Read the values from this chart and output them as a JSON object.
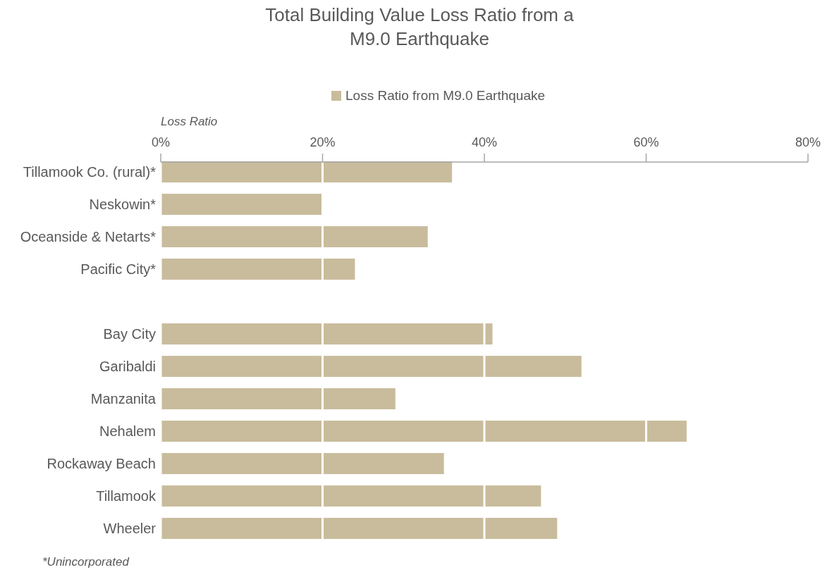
{
  "chart_data": {
    "type": "bar",
    "orientation": "horizontal",
    "title": "Total Building Value Loss Ratio from a M9.0 Earthquake",
    "xlabel": "Loss Ratio",
    "categories": [
      "Tillamook Co. (rural)*",
      "Neskowin*",
      "Oceanside & Netarts*",
      "Pacific City*",
      null,
      "Bay City",
      "Garibaldi",
      "Manzanita",
      "Nehalem",
      "Rockaway Beach",
      "Tillamook",
      "Wheeler"
    ],
    "series": [
      {
        "name": "Loss Ratio from M9.0 Earthquake",
        "color": "#c9bc9c",
        "values": [
          36,
          20,
          33,
          24,
          null,
          41,
          52,
          29,
          65,
          35,
          47,
          49
        ]
      }
    ],
    "xlim": [
      0,
      80
    ],
    "xticks": [
      {
        "value": 0,
        "label": "0%"
      },
      {
        "value": 20,
        "label": "20%"
      },
      {
        "value": 40,
        "label": "40%"
      },
      {
        "value": 60,
        "label": "60%"
      },
      {
        "value": 80,
        "label": "80%"
      }
    ],
    "grid": "x",
    "legend": "top",
    "annotations": [
      "*Unincorporated"
    ]
  }
}
